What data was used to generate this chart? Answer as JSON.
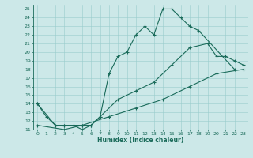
{
  "line1_x": [
    0,
    1,
    2,
    3,
    4,
    5,
    6,
    7,
    8,
    9,
    10,
    11,
    12,
    13,
    14,
    15,
    16,
    17,
    18,
    22
  ],
  "line1_y": [
    14,
    12.5,
    11.5,
    11.5,
    11.5,
    11,
    11.5,
    12.5,
    17.5,
    19.5,
    20,
    22,
    23,
    22,
    25,
    25,
    24,
    23,
    22.5,
    18
  ],
  "line2_x": [
    0,
    2,
    3,
    4,
    5,
    6,
    7,
    9,
    11,
    13,
    15,
    17,
    19,
    20,
    21,
    22,
    23
  ],
  "line2_y": [
    14,
    11.5,
    11.5,
    11.5,
    11.5,
    11.5,
    12.5,
    14.5,
    15.5,
    16.5,
    18.5,
    20.5,
    21.0,
    19.5,
    19.5,
    19.0,
    18.5
  ],
  "line3_x": [
    0,
    3,
    5,
    8,
    11,
    14,
    17,
    20,
    23
  ],
  "line3_y": [
    11.5,
    11.0,
    11.5,
    12.5,
    13.5,
    14.5,
    16.0,
    17.5,
    18.0
  ],
  "xlim": [
    -0.5,
    23.5
  ],
  "ylim": [
    11,
    25.5
  ],
  "xticks": [
    0,
    1,
    2,
    3,
    4,
    5,
    6,
    7,
    8,
    9,
    10,
    11,
    12,
    13,
    14,
    15,
    16,
    17,
    18,
    19,
    20,
    21,
    22,
    23
  ],
  "yticks": [
    11,
    12,
    13,
    14,
    15,
    16,
    17,
    18,
    19,
    20,
    21,
    22,
    23,
    24,
    25
  ],
  "xlabel": "Humidex (Indice chaleur)",
  "bg_color": "#cce8e8",
  "grid_color": "#99cccc",
  "line_color": "#1a6b5a"
}
